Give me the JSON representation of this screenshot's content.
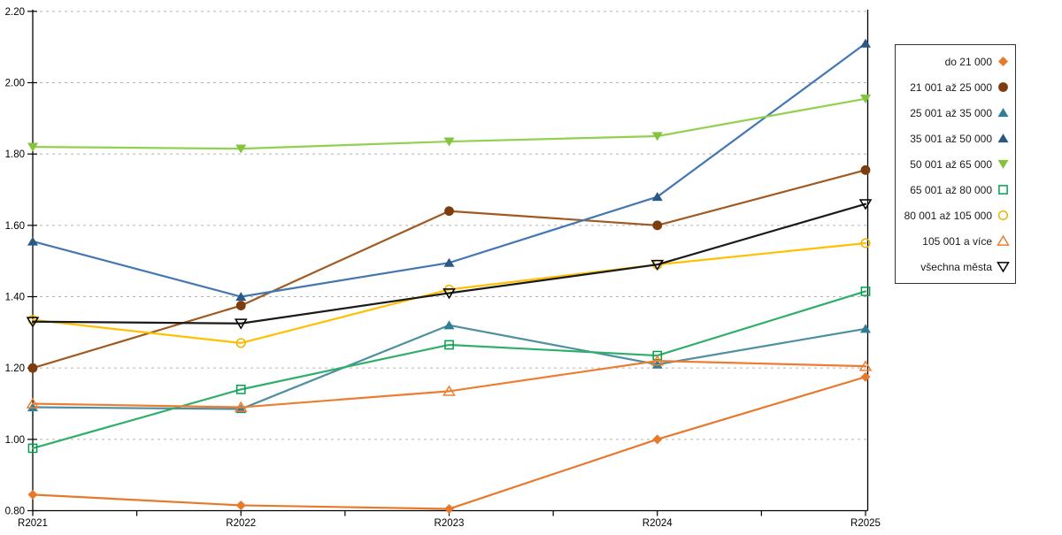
{
  "chart_data": {
    "type": "line",
    "title": "",
    "xlabel": "",
    "ylabel": "",
    "x_categories": [
      "R2021",
      "R2022",
      "R2023",
      "R2024",
      "R2025"
    ],
    "ylim": [
      0.8,
      2.2
    ],
    "ytick_step": 0.2,
    "ytick_labels": [
      "0.80",
      "1.00",
      "1.20",
      "1.40",
      "1.60",
      "1.80",
      "2.00",
      "2.20"
    ],
    "grid": "horizontal-dotted",
    "grid_color": "#b3b3b3",
    "axis_color": "#000000",
    "legend_position": "right",
    "legend_border_color": "#333333",
    "series": [
      {
        "name": "do 21 000",
        "marker": "diamond-filled",
        "color": "#e8792b",
        "marker_color": "#e8792b",
        "values": [
          0.845,
          0.815,
          0.805,
          1.0,
          1.175
        ]
      },
      {
        "name": "21 001 až 25 000",
        "marker": "circle-filled",
        "color": "#a05a21",
        "marker_color": "#7e3d0e",
        "values": [
          1.2,
          1.375,
          1.64,
          1.6,
          1.755
        ]
      },
      {
        "name": "25 001 až 35 000",
        "marker": "triangle-up-filled",
        "color": "#4e8fa0",
        "marker_color": "#2e7f96",
        "values": [
          1.09,
          1.085,
          1.32,
          1.21,
          1.31
        ]
      },
      {
        "name": "35 001 až 50 000",
        "marker": "triangle-up-filled",
        "color": "#4377b2",
        "marker_color": "#2a5784",
        "values": [
          1.555,
          1.4,
          1.495,
          1.68,
          2.11
        ]
      },
      {
        "name": "50 001 až 65 000",
        "marker": "triangle-down-filled",
        "color": "#92d050",
        "marker_color": "#84c43c",
        "values": [
          1.82,
          1.815,
          1.835,
          1.85,
          1.955
        ]
      },
      {
        "name": "65 001 až 80 000",
        "marker": "square-open",
        "color": "#2faf6b",
        "marker_color": "#00a050",
        "values": [
          0.975,
          1.14,
          1.265,
          1.235,
          1.415
        ]
      },
      {
        "name": "80 001 až 105 000",
        "marker": "circle-open",
        "color": "#ffc000",
        "marker_color": "#edb500",
        "values": [
          1.335,
          1.27,
          1.42,
          1.49,
          1.55
        ]
      },
      {
        "name": "105 001 a více",
        "marker": "triangle-up-open",
        "color": "#ed7d31",
        "marker_color": "#ed7d31",
        "values": [
          1.1,
          1.09,
          1.135,
          1.22,
          1.205
        ]
      },
      {
        "name": "všechna města",
        "marker": "triangle-down-open",
        "color": "#1a1a1a",
        "marker_color": "#000000",
        "values": [
          1.33,
          1.325,
          1.41,
          1.49,
          1.66
        ]
      }
    ]
  }
}
